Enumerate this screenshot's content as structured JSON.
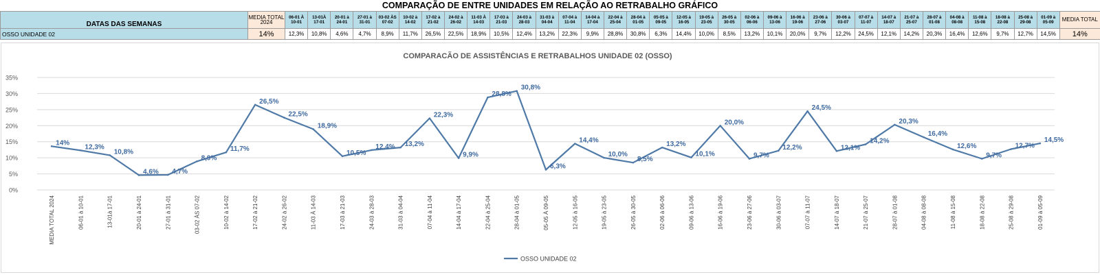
{
  "title": "COMPARAÇÃO DE ENTRE UNIDADES EM RELAÇÃO AO RETRABALHO GRÁFICO",
  "table": {
    "label_header": "DATAS DAS SEMANAS",
    "avg_header": "MEDIA TOTAL 2024",
    "total_header": "MEDIA TOTAL",
    "row_label": "OSSO UNIDADE 02",
    "avg_value": "14%",
    "total_value": "14%",
    "weeks": [
      {
        "a": "06-01 À",
        "b": "10-01"
      },
      {
        "a": "13-01À",
        "b": "17-01"
      },
      {
        "a": "20-01 à",
        "b": "24-01"
      },
      {
        "a": "27-01 à",
        "b": "31-01"
      },
      {
        "a": "03-02 ÀS",
        "b": "07-02"
      },
      {
        "a": "10-02 à",
        "b": "14-02"
      },
      {
        "a": "17-02 à",
        "b": "21-02"
      },
      {
        "a": "24-02 à",
        "b": "26-02"
      },
      {
        "a": "11-03 À",
        "b": "14-03"
      },
      {
        "a": "17-03 à",
        "b": "21-03"
      },
      {
        "a": "24-03 à",
        "b": "28-03"
      },
      {
        "a": "31-03 à",
        "b": "04-04"
      },
      {
        "a": "07-04 à",
        "b": "11-04"
      },
      {
        "a": "14-04 à",
        "b": "17-04"
      },
      {
        "a": "22-04 à",
        "b": "25-04"
      },
      {
        "a": "28-04 à",
        "b": "01-05"
      },
      {
        "a": "05-05 à",
        "b": "09-05"
      },
      {
        "a": "12-05 à",
        "b": "16-05"
      },
      {
        "a": "19-05 à",
        "b": "23-05"
      },
      {
        "a": "26-05 à",
        "b": "30-05"
      },
      {
        "a": "02-06 à",
        "b": "06-06"
      },
      {
        "a": "09-06 à",
        "b": "13-06"
      },
      {
        "a": "16-06 à",
        "b": "19-06"
      },
      {
        "a": "23-06 à",
        "b": "27-06"
      },
      {
        "a": "30-06 à",
        "b": "03-07"
      },
      {
        "a": "07-07 à",
        "b": "11-07"
      },
      {
        "a": "14-07 à",
        "b": "18-07"
      },
      {
        "a": "21-07 à",
        "b": "25-07"
      },
      {
        "a": "28-07 à",
        "b": "01-08"
      },
      {
        "a": "04-08 à",
        "b": "08-08"
      },
      {
        "a": "11-08 à",
        "b": "15-08"
      },
      {
        "a": "18-08 à",
        "b": "22-08"
      },
      {
        "a": "25-08 à",
        "b": "29-08"
      },
      {
        "a": "01-09 à",
        "b": "05-09"
      }
    ],
    "values": [
      "12,3%",
      "10,8%",
      "4,6%",
      "4,7%",
      "8,9%",
      "11,7%",
      "26,5%",
      "22,5%",
      "18,9%",
      "10,5%",
      "12,4%",
      "13,2%",
      "22,3%",
      "9,9%",
      "28,8%",
      "30,8%",
      "6,3%",
      "14,4%",
      "10,0%",
      "8,5%",
      "13,2%",
      "10,1%",
      "20,0%",
      "9,7%",
      "12,2%",
      "24,5%",
      "12,1%",
      "14,2%",
      "20,3%",
      "16,4%",
      "12,6%",
      "9,7%",
      "12,7%",
      "14,5%"
    ]
  },
  "chart_data": {
    "type": "line",
    "title": "COMPARACÃO DE ASSISTÊNCIAS E RETRABALHOS UNIDADE 02  (OSSO)",
    "ylim": [
      0,
      35
    ],
    "yticks": [
      "0%",
      "5%",
      "10%",
      "15%",
      "20%",
      "25%",
      "30%",
      "35%"
    ],
    "legend_position": "bottom",
    "grid": true,
    "categories": [
      "MEDIA TOTAL 2024",
      "06-01 à 10-01",
      "13-01à 17-01",
      "20-01 à 24-01",
      "27-01 à 31-01",
      "03-02 ÀS 07-02",
      "10-02 à 14-02",
      "17-02 à 21-02",
      "24-02 à 26-02",
      "11-03  À 14-03",
      "17-03 à 21-03",
      "24-03 à 28-03",
      "31-03 à 04-04",
      "07-04 à 11-04",
      "14-04 à 17-04",
      "22-04 à 25-04",
      "28-04 à 01-05",
      "05-05 À 09-05",
      "12-05 à 16-05",
      "19-05 à 23-05",
      "26-05 à 30-05",
      "02-06 à 06-06",
      "09-06 à 13-06",
      "16-06 à 19-06",
      "23-06 à 27-06",
      "30-06 à 03-07",
      "07-07 à 11-07",
      "14-07 à 18-07",
      "21-07 à 25-07",
      "28-07 à 01-08",
      "04-08 à 08-08",
      "11-08 à 15-08",
      "18-08 à 22-08",
      "25-08 à 29-08",
      "01-09 à 05-09"
    ],
    "series": [
      {
        "name": "OSSO UNIDADE 02",
        "color": "#4f79a7",
        "values": [
          13.6,
          12.3,
          10.8,
          4.6,
          4.7,
          8.9,
          11.7,
          26.5,
          22.5,
          18.9,
          10.5,
          12.4,
          13.2,
          22.3,
          9.9,
          28.8,
          30.8,
          6.3,
          14.4,
          10.0,
          8.5,
          13.2,
          10.1,
          20.0,
          9.7,
          12.2,
          24.5,
          12.1,
          14.2,
          20.3,
          16.4,
          12.6,
          9.7,
          12.7,
          14.5
        ],
        "labels": [
          "14%",
          "12,3%",
          "10,8%",
          "4,6%",
          "4,7%",
          "8,9%",
          "11,7%",
          "26,5%",
          "22,5%",
          "18,9%",
          "10,5%",
          "12,4%",
          "13,2%",
          "22,3%",
          "9,9%",
          "28,8%",
          "30,8%",
          "6,3%",
          "14,4%",
          "10,0%",
          "8,5%",
          "13,2%",
          "10,1%",
          "20,0%",
          "9,7%",
          "12,2%",
          "24,5%",
          "12,1%",
          "14,2%",
          "20,3%",
          "16,4%",
          "12,6%",
          "9,7%",
          "12,7%",
          "14,5%"
        ]
      }
    ]
  }
}
